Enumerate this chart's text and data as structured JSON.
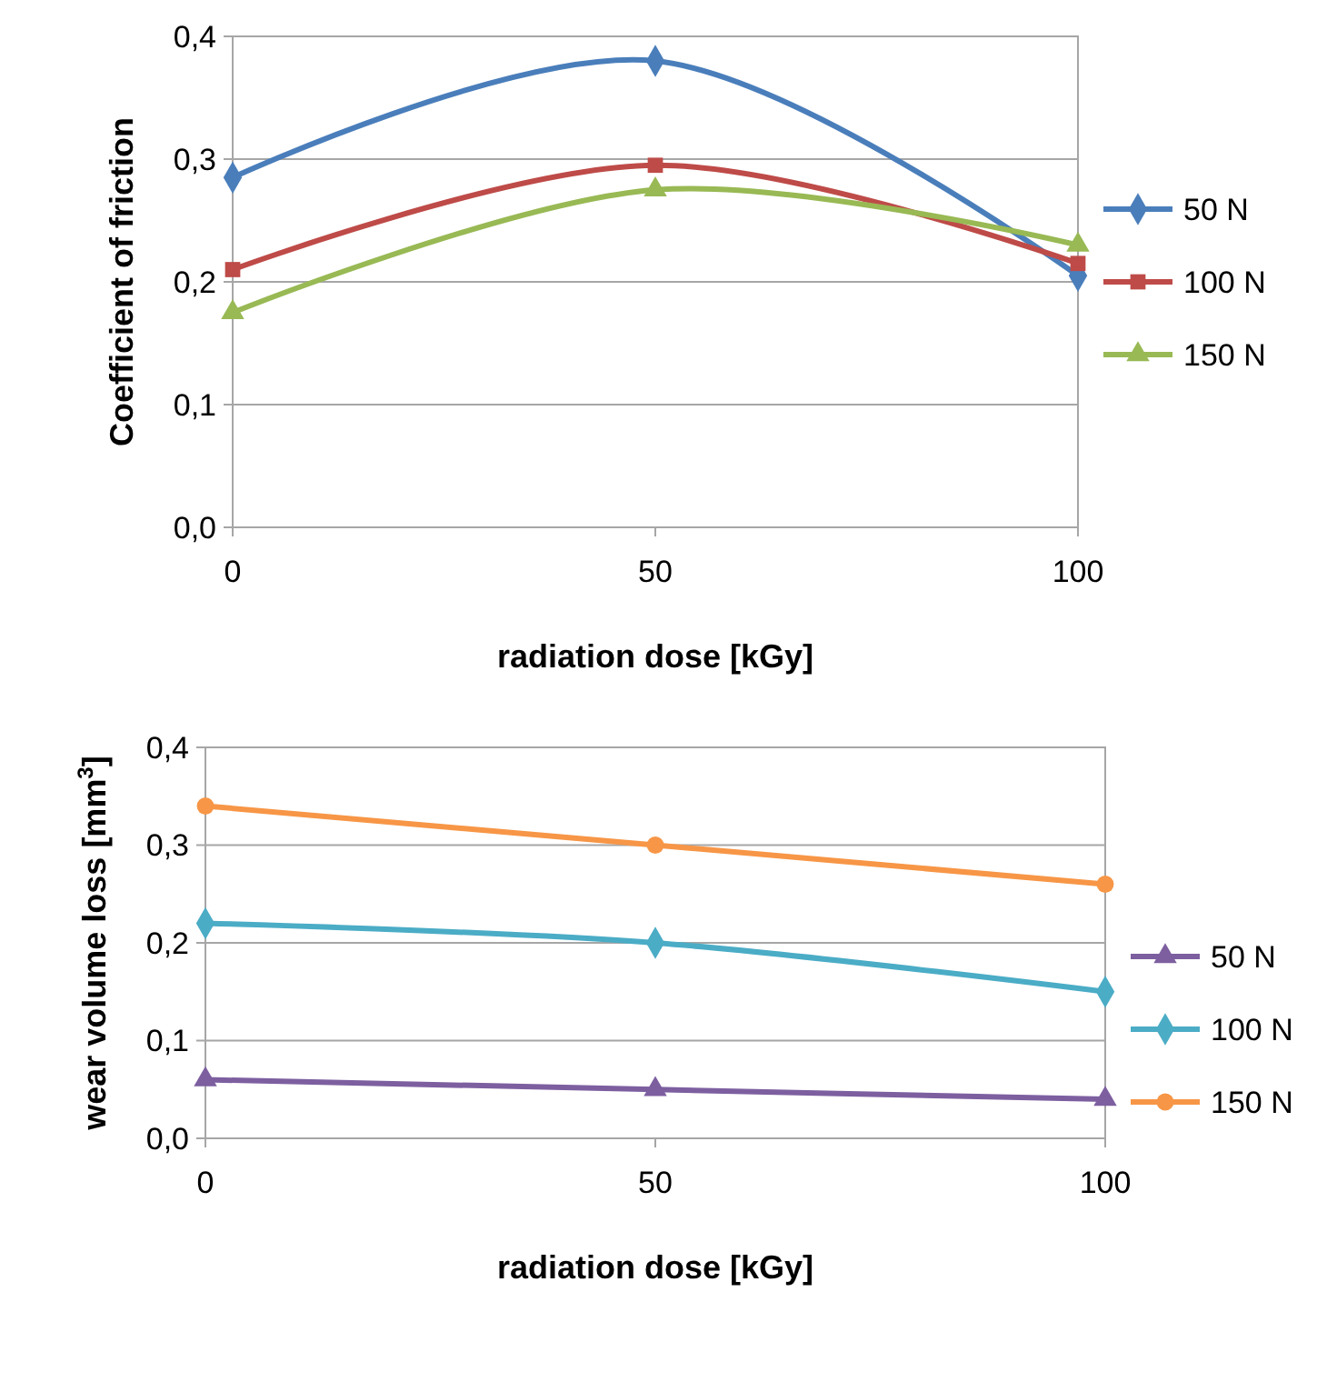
{
  "chart_data": [
    {
      "type": "line",
      "xlabel": "radiation dose [kGy]",
      "ylabel": "Coefficient of friction",
      "x": [
        0,
        50,
        100
      ],
      "xlim": [
        0,
        100
      ],
      "xticks": [
        0,
        50,
        100
      ],
      "ylim": [
        0,
        0.4
      ],
      "yticks": [
        {
          "value": 0,
          "label": "0,0"
        },
        {
          "value": 0.1,
          "label": "0,1"
        },
        {
          "value": 0.2,
          "label": "0,2"
        },
        {
          "value": 0.3,
          "label": "0,3"
        },
        {
          "value": 0.4,
          "label": "0,4"
        }
      ],
      "grid": "y",
      "legend": "right",
      "series": [
        {
          "name": "50 N",
          "color": "#4a7ebb",
          "marker": "diamond",
          "values": [
            0.285,
            0.38,
            0.205
          ]
        },
        {
          "name": "100 N",
          "color": "#be4b48",
          "marker": "square",
          "values": [
            0.21,
            0.295,
            0.215
          ]
        },
        {
          "name": "150 N",
          "color": "#98b954",
          "marker": "triangle",
          "values": [
            0.175,
            0.275,
            0.23
          ]
        }
      ]
    },
    {
      "type": "line",
      "xlabel": "radiation dose [kGy]",
      "ylabel": "wear volume loss [mm$^{3}$]",
      "x": [
        0,
        50,
        100
      ],
      "xlim": [
        0,
        100
      ],
      "xticks": [
        0,
        50,
        100
      ],
      "ylim": [
        0,
        0.4
      ],
      "yticks": [
        {
          "value": 0,
          "label": "0,0"
        },
        {
          "value": 0.1,
          "label": "0,1"
        },
        {
          "value": 0.2,
          "label": "0,2"
        },
        {
          "value": 0.3,
          "label": "0,3"
        },
        {
          "value": 0.4,
          "label": "0,4"
        }
      ],
      "grid": "y",
      "legend": "bottom right",
      "series": [
        {
          "name": "50 N",
          "color": "#7d5fa0",
          "marker": "triangle",
          "values": [
            0.06,
            0.05,
            0.04
          ]
        },
        {
          "name": "100 N",
          "color": "#4bacc6",
          "marker": "diamond",
          "values": [
            0.22,
            0.2,
            0.15
          ]
        },
        {
          "name": "150 N",
          "color": "#f79646",
          "marker": "circle",
          "values": [
            0.34,
            0.3,
            0.26
          ]
        }
      ]
    }
  ]
}
